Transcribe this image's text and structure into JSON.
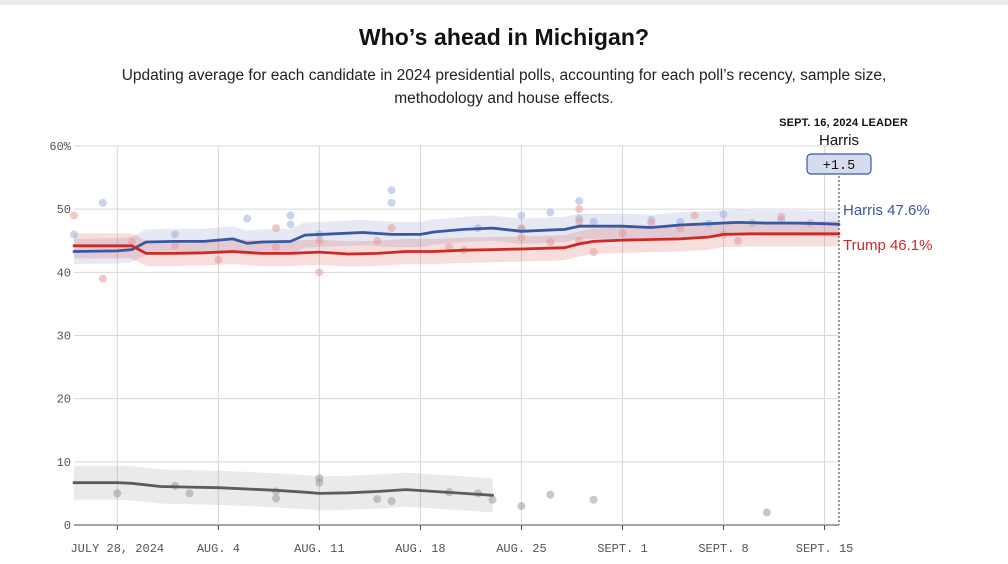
{
  "title": "Who’s ahead in Michigan?",
  "subtitle": "Updating average for each candidate in 2024 presidential polls, accounting for each poll’s recency, sample size, methodology and house effects.",
  "leader_box": {
    "date_label": "SEPT. 16, 2024 LEADER",
    "name": "Harris",
    "margin": "+1.5"
  },
  "colors": {
    "harris": "#3a57a4",
    "trump": "#cc2a27",
    "other": "#5c5c5c"
  },
  "chart_data": {
    "type": "line",
    "title": "Who’s ahead in Michigan?",
    "x_start": "2024-07-25",
    "x_end": "2024-09-16",
    "ylim": [
      0,
      60
    ],
    "y_ticks": [
      0,
      10,
      20,
      30,
      40,
      50,
      60
    ],
    "y_tick_labels": [
      "0",
      "10",
      "20",
      "30",
      "40",
      "50",
      "60%"
    ],
    "x_ticks": [
      {
        "date": "2024-07-28",
        "label": "JULY 28, 2024"
      },
      {
        "date": "2024-08-04",
        "label": "AUG. 4"
      },
      {
        "date": "2024-08-11",
        "label": "AUG. 11"
      },
      {
        "date": "2024-08-18",
        "label": "AUG. 18"
      },
      {
        "date": "2024-08-25",
        "label": "AUG. 25"
      },
      {
        "date": "2024-09-01",
        "label": "SEPT. 1"
      },
      {
        "date": "2024-09-08",
        "label": "SEPT. 8"
      },
      {
        "date": "2024-09-15",
        "label": "SEPT. 15"
      }
    ],
    "grid": true,
    "series": [
      {
        "name": "Harris",
        "end_label": "Harris 47.6%",
        "color": "#3a57a4",
        "x": [
          "2024-07-25",
          "2024-07-28",
          "2024-07-29",
          "2024-07-30",
          "2024-08-01",
          "2024-08-03",
          "2024-08-05",
          "2024-08-06",
          "2024-08-07",
          "2024-08-09",
          "2024-08-10",
          "2024-08-12",
          "2024-08-14",
          "2024-08-16",
          "2024-08-18",
          "2024-08-19",
          "2024-08-21",
          "2024-08-23",
          "2024-08-25",
          "2024-08-28",
          "2024-08-29",
          "2024-09-01",
          "2024-09-03",
          "2024-09-05",
          "2024-09-07",
          "2024-09-09",
          "2024-09-11",
          "2024-09-13",
          "2024-09-15",
          "2024-09-16"
        ],
        "values": [
          43.3,
          43.4,
          43.6,
          44.8,
          44.9,
          44.9,
          45.3,
          44.6,
          44.8,
          44.9,
          45.9,
          46.1,
          46.3,
          46.0,
          46.0,
          46.4,
          46.8,
          47.0,
          46.5,
          46.8,
          47.3,
          47.3,
          47.1,
          47.5,
          47.7,
          47.9,
          47.8,
          47.8,
          47.7,
          47.6
        ],
        "band": 2.0
      },
      {
        "name": "Trump",
        "end_label": "Trump 46.1%",
        "color": "#cc2a27",
        "x": [
          "2024-07-25",
          "2024-07-28",
          "2024-07-29",
          "2024-07-30",
          "2024-08-01",
          "2024-08-03",
          "2024-08-05",
          "2024-08-07",
          "2024-08-09",
          "2024-08-11",
          "2024-08-13",
          "2024-08-15",
          "2024-08-17",
          "2024-08-19",
          "2024-08-21",
          "2024-08-23",
          "2024-08-25",
          "2024-08-28",
          "2024-08-29",
          "2024-08-30",
          "2024-09-01",
          "2024-09-03",
          "2024-09-05",
          "2024-09-07",
          "2024-09-08",
          "2024-09-10",
          "2024-09-12",
          "2024-09-14",
          "2024-09-16"
        ],
        "values": [
          44.2,
          44.2,
          44.2,
          43.0,
          43.0,
          43.1,
          43.3,
          43.0,
          43.0,
          43.2,
          42.9,
          43.0,
          43.3,
          43.3,
          43.5,
          43.6,
          43.7,
          43.9,
          44.5,
          44.9,
          45.1,
          45.2,
          45.3,
          45.6,
          46.0,
          46.1,
          46.1,
          46.1,
          46.1
        ],
        "band": 2.0
      },
      {
        "name": "",
        "color": "#5c5c5c",
        "x": [
          "2024-07-25",
          "2024-07-28",
          "2024-07-29",
          "2024-07-31",
          "2024-08-02",
          "2024-08-04",
          "2024-08-06",
          "2024-08-08",
          "2024-08-10",
          "2024-08-11",
          "2024-08-13",
          "2024-08-15",
          "2024-08-17",
          "2024-08-19",
          "2024-08-21",
          "2024-08-23"
        ],
        "values": [
          6.7,
          6.7,
          6.6,
          6.1,
          6.0,
          5.9,
          5.7,
          5.5,
          5.2,
          5.0,
          5.1,
          5.3,
          5.6,
          5.3,
          5.0,
          4.7
        ],
        "band": 2.7
      }
    ],
    "polls": {
      "harris": [
        {
          "x": "2024-07-25",
          "y": 46
        },
        {
          "x": "2024-07-27",
          "y": 51
        },
        {
          "x": "2024-08-01",
          "y": 46
        },
        {
          "x": "2024-08-06",
          "y": 48.5
        },
        {
          "x": "2024-08-09",
          "y": 49
        },
        {
          "x": "2024-08-09",
          "y": 47.6
        },
        {
          "x": "2024-08-11",
          "y": 46
        },
        {
          "x": "2024-08-16",
          "y": 53
        },
        {
          "x": "2024-08-16",
          "y": 51
        },
        {
          "x": "2024-08-22",
          "y": 47
        },
        {
          "x": "2024-08-25",
          "y": 49
        },
        {
          "x": "2024-08-25",
          "y": 46.8
        },
        {
          "x": "2024-08-27",
          "y": 49.5
        },
        {
          "x": "2024-08-29",
          "y": 51.3
        },
        {
          "x": "2024-08-29",
          "y": 48.5
        },
        {
          "x": "2024-08-30",
          "y": 48
        },
        {
          "x": "2024-09-03",
          "y": 48.3
        },
        {
          "x": "2024-09-05",
          "y": 48
        },
        {
          "x": "2024-09-07",
          "y": 47.7
        },
        {
          "x": "2024-09-08",
          "y": 49.2
        },
        {
          "x": "2024-09-10",
          "y": 47.8
        },
        {
          "x": "2024-09-12",
          "y": 48.3
        }
      ],
      "trump": [
        {
          "x": "2024-07-25",
          "y": 49
        },
        {
          "x": "2024-07-27",
          "y": 39
        },
        {
          "x": "2024-07-29",
          "y": 44.8
        },
        {
          "x": "2024-08-01",
          "y": 44.2
        },
        {
          "x": "2024-08-04",
          "y": 42
        },
        {
          "x": "2024-08-08",
          "y": 47
        },
        {
          "x": "2024-08-08",
          "y": 44
        },
        {
          "x": "2024-08-11",
          "y": 40
        },
        {
          "x": "2024-08-11",
          "y": 45
        },
        {
          "x": "2024-08-15",
          "y": 45
        },
        {
          "x": "2024-08-16",
          "y": 47
        },
        {
          "x": "2024-08-20",
          "y": 44
        },
        {
          "x": "2024-08-21",
          "y": 43.5
        },
        {
          "x": "2024-08-25",
          "y": 47
        },
        {
          "x": "2024-08-25",
          "y": 45.5
        },
        {
          "x": "2024-08-27",
          "y": 44.8
        },
        {
          "x": "2024-08-29",
          "y": 50
        },
        {
          "x": "2024-08-29",
          "y": 48
        },
        {
          "x": "2024-08-29",
          "y": 45
        },
        {
          "x": "2024-08-30",
          "y": 43.2
        },
        {
          "x": "2024-09-01",
          "y": 46.2
        },
        {
          "x": "2024-09-03",
          "y": 47.8
        },
        {
          "x": "2024-09-05",
          "y": 47
        },
        {
          "x": "2024-09-06",
          "y": 49
        },
        {
          "x": "2024-09-08",
          "y": 46
        },
        {
          "x": "2024-09-09",
          "y": 45
        },
        {
          "x": "2024-09-12",
          "y": 48.8
        },
        {
          "x": "2024-09-14",
          "y": 47.8
        }
      ],
      "other": [
        {
          "x": "2024-07-28",
          "y": 5
        },
        {
          "x": "2024-08-01",
          "y": 6.2
        },
        {
          "x": "2024-08-02",
          "y": 5
        },
        {
          "x": "2024-08-08",
          "y": 4.2
        },
        {
          "x": "2024-08-08",
          "y": 5.3
        },
        {
          "x": "2024-08-11",
          "y": 7.4
        },
        {
          "x": "2024-08-11",
          "y": 6.7
        },
        {
          "x": "2024-08-15",
          "y": 4.1
        },
        {
          "x": "2024-08-16",
          "y": 3.8
        },
        {
          "x": "2024-08-20",
          "y": 5.2
        },
        {
          "x": "2024-08-22",
          "y": 5
        },
        {
          "x": "2024-08-23",
          "y": 4
        },
        {
          "x": "2024-08-25",
          "y": 3
        },
        {
          "x": "2024-08-27",
          "y": 4.8
        },
        {
          "x": "2024-08-30",
          "y": 4
        },
        {
          "x": "2024-09-11",
          "y": 2
        }
      ]
    }
  }
}
